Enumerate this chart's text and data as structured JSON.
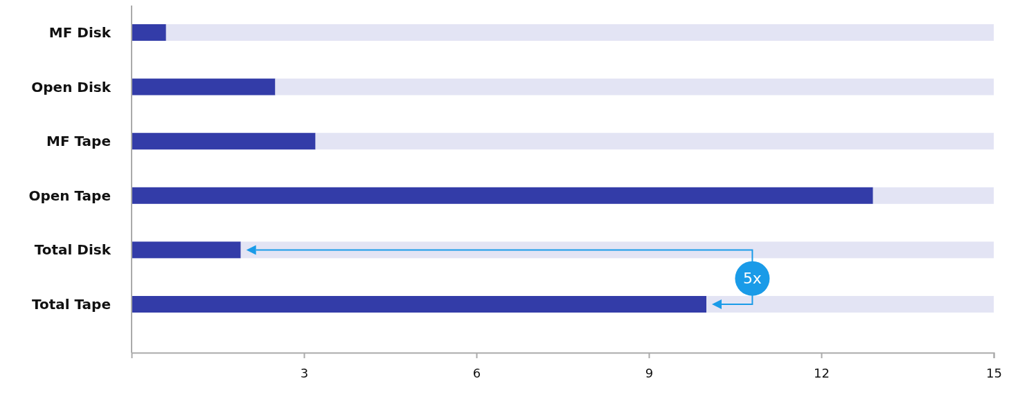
{
  "chart_data": {
    "type": "bar",
    "orientation": "horizontal",
    "stacked": true,
    "categories": [
      "MF Disk",
      "Open Disk",
      "MF Tape",
      "Open Tape",
      "Total Disk",
      "Total Tape"
    ],
    "series": [
      {
        "color": "#333ca8",
        "values": [
          0.6,
          2.5,
          3.2,
          12.9,
          1.9,
          10.0
        ]
      },
      {
        "color": "#e3e4f4",
        "values": [
          14.4,
          12.5,
          11.8,
          2.1,
          13.1,
          5.0
        ]
      }
    ],
    "xlim": [
      0,
      15
    ],
    "xticks": [
      3,
      6,
      9,
      12,
      15
    ],
    "grid": false,
    "annotations": [
      "5x"
    ]
  }
}
